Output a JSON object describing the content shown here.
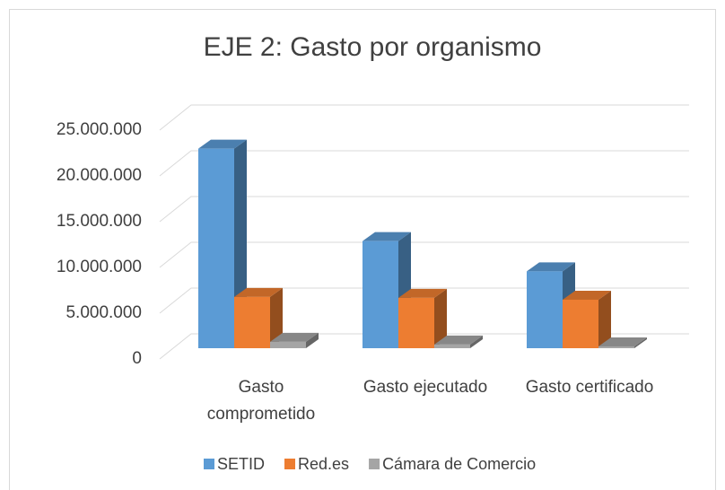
{
  "chart_data": {
    "type": "bar3d",
    "title": "EJE 2: Gasto por organismo",
    "categories": [
      "Gasto comprometido",
      "Gasto ejecutado",
      "Gasto certificado"
    ],
    "series": [
      {
        "name": "SETID",
        "color": "#5b9bd5",
        "values": [
          21800000,
          11700000,
          8400000
        ]
      },
      {
        "name": "Red.es",
        "color": "#ed7d31",
        "values": [
          5600000,
          5500000,
          5300000
        ]
      },
      {
        "name": "Cámara de Comercio",
        "color": "#a5a5a5",
        "values": [
          700000,
          400000,
          200000
        ]
      }
    ],
    "ylim": [
      0,
      25000000
    ],
    "yticks": [
      {
        "value": 0,
        "label": "0"
      },
      {
        "value": 5000000,
        "label": "5.000.000"
      },
      {
        "value": 10000000,
        "label": "10.000.000"
      },
      {
        "value": 15000000,
        "label": "15.000.000"
      },
      {
        "value": 20000000,
        "label": "20.000.000"
      },
      {
        "value": 25000000,
        "label": "25.000.000"
      }
    ],
    "grid": true,
    "legend": "bottom"
  }
}
